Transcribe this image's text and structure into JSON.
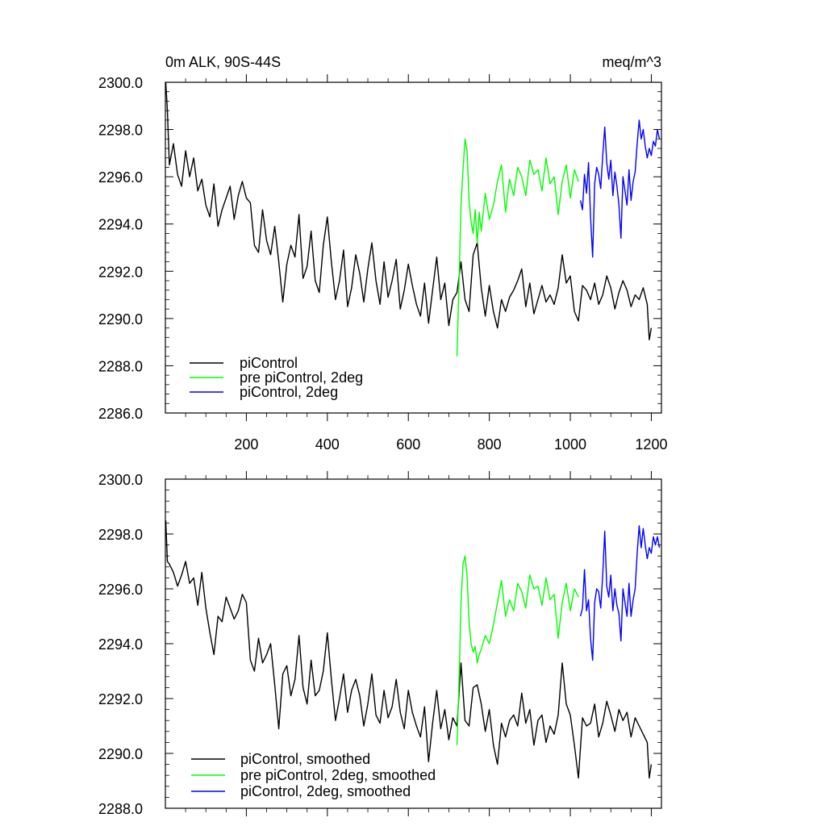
{
  "title_left": "0m ALK, 90S-44S",
  "title_right": "meq/m^3",
  "chart_data": [
    {
      "type": "line",
      "xlim": [
        0,
        1225
      ],
      "ylim": [
        2286,
        2300
      ],
      "xticks": [
        200,
        400,
        600,
        800,
        1000,
        1200
      ],
      "xtick_labels": [
        "200",
        "400",
        "600",
        "800",
        "1000",
        "1200"
      ],
      "yticks": [
        2286,
        2288,
        2290,
        2292,
        2294,
        2296,
        2298,
        2300
      ],
      "ytick_labels": [
        "2286.0",
        "2288.0",
        "2290.0",
        "2292.0",
        "2294.0",
        "2296.0",
        "2298.0",
        "2300.0"
      ],
      "legend_position": "bottom-left",
      "series": [
        {
          "name": "piControl",
          "color": "#000000",
          "x": [
            1,
            5,
            10,
            20,
            30,
            40,
            50,
            60,
            70,
            80,
            90,
            100,
            110,
            120,
            130,
            140,
            150,
            160,
            170,
            180,
            190,
            200,
            210,
            220,
            230,
            240,
            250,
            260,
            270,
            280,
            290,
            300,
            310,
            320,
            330,
            340,
            350,
            360,
            370,
            380,
            390,
            400,
            410,
            420,
            430,
            440,
            450,
            460,
            470,
            480,
            490,
            500,
            510,
            520,
            530,
            540,
            550,
            560,
            570,
            580,
            590,
            600,
            610,
            620,
            630,
            640,
            650,
            660,
            670,
            680,
            690,
            700,
            710,
            720,
            730,
            740,
            750,
            760,
            770,
            780,
            790,
            800,
            810,
            820,
            830,
            840,
            850,
            860,
            870,
            880,
            890,
            900,
            910,
            920,
            930,
            940,
            950,
            960,
            970,
            980,
            990,
            1000,
            1010,
            1020,
            1030,
            1040,
            1050,
            1060,
            1070,
            1080,
            1090,
            1100,
            1110,
            1120,
            1130,
            1140,
            1150,
            1160,
            1170,
            1180,
            1190,
            1195,
            1200
          ],
          "values": [
            2300.0,
            2298.8,
            2296.5,
            2297.4,
            2296.1,
            2295.6,
            2297.1,
            2296.0,
            2296.8,
            2295.4,
            2295.9,
            2294.8,
            2294.3,
            2295.7,
            2293.9,
            2294.6,
            2295.1,
            2295.6,
            2294.2,
            2295.2,
            2295.8,
            2295.1,
            2294.9,
            2293.1,
            2292.8,
            2294.6,
            2293.3,
            2292.7,
            2293.9,
            2292.4,
            2290.7,
            2292.3,
            2293.1,
            2292.6,
            2294.4,
            2291.7,
            2292.2,
            2293.7,
            2291.6,
            2291.1,
            2293.1,
            2294.3,
            2292.4,
            2290.8,
            2291.6,
            2292.9,
            2290.5,
            2291.3,
            2292.7,
            2291.9,
            2290.7,
            2292.1,
            2293.2,
            2291.6,
            2290.6,
            2292.4,
            2290.9,
            2291.6,
            2292.5,
            2290.4,
            2291.2,
            2292.3,
            2291.4,
            2290.6,
            2290.1,
            2291.5,
            2289.8,
            2291.2,
            2292.6,
            2290.8,
            2291.5,
            2289.7,
            2290.8,
            2291.1,
            2292.4,
            2290.8,
            2290.3,
            2292.7,
            2293.2,
            2291.3,
            2290.1,
            2291.4,
            2290.3,
            2289.6,
            2290.8,
            2290.3,
            2290.9,
            2291.2,
            2291.6,
            2292.1,
            2290.5,
            2291.5,
            2290.2,
            2290.8,
            2291.4,
            2290.7,
            2291.0,
            2290.6,
            2291.3,
            2292.7,
            2291.5,
            2291.8,
            2290.3,
            2289.9,
            2291.4,
            2291.2,
            2290.8,
            2291.5,
            2290.6,
            2291.0,
            2291.8,
            2291.3,
            2290.4,
            2291.1,
            2291.6,
            2291.2,
            2290.5,
            2291.0,
            2290.8,
            2291.3,
            2290.6,
            2289.1,
            2289.6
          ]
        },
        {
          "name": "pre piControl, 2deg",
          "color": "#00ff00",
          "x": [
            720,
            725,
            730,
            735,
            740,
            745,
            750,
            755,
            760,
            765,
            770,
            775,
            780,
            790,
            800,
            810,
            820,
            830,
            840,
            850,
            860,
            870,
            880,
            890,
            900,
            910,
            920,
            930,
            940,
            950,
            960,
            970,
            980,
            990,
            1000,
            1010,
            1020
          ],
          "values": [
            2288.4,
            2291.5,
            2294.8,
            2296.3,
            2297.6,
            2297.1,
            2295.0,
            2294.1,
            2293.6,
            2294.6,
            2293.2,
            2294.5,
            2293.7,
            2295.3,
            2294.2,
            2294.8,
            2295.8,
            2296.5,
            2294.5,
            2295.9,
            2295.2,
            2296.4,
            2296.0,
            2295.2,
            2296.7,
            2296.1,
            2296.3,
            2295.4,
            2296.8,
            2295.7,
            2296.0,
            2294.4,
            2295.8,
            2296.5,
            2295.1,
            2296.3,
            2295.8
          ]
        },
        {
          "name": "piControl, 2deg",
          "color": "#0000ff",
          "x": [
            1025,
            1030,
            1035,
            1040,
            1045,
            1050,
            1055,
            1060,
            1065,
            1070,
            1075,
            1080,
            1085,
            1090,
            1095,
            1100,
            1105,
            1110,
            1115,
            1120,
            1125,
            1130,
            1135,
            1140,
            1145,
            1150,
            1155,
            1160,
            1165,
            1170,
            1175,
            1180,
            1185,
            1190,
            1195,
            1200,
            1205,
            1210,
            1215,
            1220
          ],
          "values": [
            2295.0,
            2294.6,
            2296.1,
            2295.3,
            2296.6,
            2294.3,
            2292.6,
            2295.7,
            2296.4,
            2296.1,
            2295.5,
            2296.9,
            2298.1,
            2296.6,
            2295.9,
            2296.7,
            2295.2,
            2296.2,
            2295.6,
            2294.8,
            2293.4,
            2296.0,
            2295.4,
            2294.8,
            2296.3,
            2295.0,
            2295.8,
            2296.2,
            2297.4,
            2298.4,
            2297.6,
            2298.0,
            2297.3,
            2296.8,
            2297.2,
            2296.9,
            2297.5,
            2297.3,
            2298.0,
            2297.6
          ]
        }
      ]
    },
    {
      "type": "line",
      "xlim": [
        0,
        1225
      ],
      "ylim": [
        2288,
        2300
      ],
      "xticks": [
        200,
        400,
        600,
        800,
        1000,
        1200
      ],
      "xtick_labels": [],
      "yticks": [
        2288,
        2290,
        2292,
        2294,
        2296,
        2298,
        2300
      ],
      "ytick_labels": [
        "2288.0",
        "2290.0",
        "2292.0",
        "2294.0",
        "2296.0",
        "2298.0",
        "2300.0"
      ],
      "legend_position": "bottom-left",
      "series": [
        {
          "name": "piControl, smoothed",
          "color": "#000000",
          "x": [
            1,
            5,
            10,
            20,
            30,
            40,
            50,
            60,
            70,
            80,
            90,
            100,
            110,
            120,
            130,
            140,
            150,
            160,
            170,
            180,
            190,
            200,
            210,
            220,
            230,
            240,
            250,
            260,
            270,
            280,
            290,
            300,
            310,
            320,
            330,
            340,
            350,
            360,
            370,
            380,
            390,
            400,
            410,
            420,
            430,
            440,
            450,
            460,
            470,
            480,
            490,
            500,
            510,
            520,
            530,
            540,
            550,
            560,
            570,
            580,
            590,
            600,
            610,
            620,
            630,
            640,
            650,
            660,
            670,
            680,
            690,
            700,
            710,
            720,
            730,
            740,
            750,
            760,
            770,
            780,
            790,
            800,
            810,
            820,
            830,
            840,
            850,
            860,
            870,
            880,
            890,
            900,
            910,
            920,
            930,
            940,
            950,
            960,
            970,
            980,
            990,
            1000,
            1010,
            1020,
            1030,
            1040,
            1050,
            1060,
            1070,
            1080,
            1090,
            1100,
            1110,
            1120,
            1130,
            1140,
            1150,
            1160,
            1170,
            1180,
            1190,
            1195,
            1200
          ],
          "values": [
            2298.5,
            2297.0,
            2296.9,
            2296.6,
            2296.1,
            2296.5,
            2297.0,
            2296.2,
            2296.4,
            2295.4,
            2296.6,
            2295.3,
            2294.4,
            2293.6,
            2295.0,
            2294.8,
            2295.7,
            2295.3,
            2294.9,
            2295.2,
            2295.8,
            2295.5,
            2293.4,
            2293.0,
            2294.2,
            2293.3,
            2293.6,
            2294.0,
            2292.5,
            2290.9,
            2292.9,
            2293.2,
            2292.1,
            2292.7,
            2294.3,
            2292.4,
            2291.8,
            2293.4,
            2292.1,
            2292.3,
            2293.0,
            2294.4,
            2292.7,
            2291.2,
            2292.0,
            2292.9,
            2291.5,
            2292.3,
            2292.7,
            2292.1,
            2291.0,
            2291.8,
            2292.9,
            2291.4,
            2291.1,
            2292.3,
            2291.3,
            2291.7,
            2292.7,
            2291.5,
            2290.9,
            2292.3,
            2291.5,
            2291.0,
            2290.6,
            2291.7,
            2289.7,
            2291.1,
            2292.3,
            2290.9,
            2291.6,
            2290.5,
            2291.3,
            2291.0,
            2293.3,
            2291.2,
            2291.0,
            2292.4,
            2292.5,
            2291.8,
            2290.8,
            2291.6,
            2290.3,
            2289.6,
            2291.1,
            2290.6,
            2291.2,
            2291.4,
            2291.0,
            2292.2,
            2291.1,
            2291.6,
            2290.3,
            2291.2,
            2291.4,
            2290.4,
            2291.0,
            2290.7,
            2291.4,
            2293.3,
            2291.8,
            2291.4,
            2290.3,
            2289.1,
            2291.3,
            2291.0,
            2291.1,
            2291.8,
            2290.6,
            2291.1,
            2291.9,
            2291.4,
            2290.8,
            2291.6,
            2291.2,
            2291.5,
            2290.6,
            2291.3,
            2291.0,
            2290.7,
            2290.4,
            2289.1,
            2289.6
          ]
        },
        {
          "name": "pre piControl, 2deg, smoothed",
          "color": "#00ff00",
          "x": [
            720,
            725,
            730,
            735,
            740,
            745,
            750,
            755,
            760,
            765,
            770,
            775,
            780,
            790,
            800,
            810,
            820,
            830,
            840,
            850,
            860,
            870,
            880,
            890,
            900,
            910,
            920,
            930,
            940,
            950,
            960,
            970,
            980,
            990,
            1000,
            1010,
            1020
          ],
          "values": [
            2290.3,
            2292.6,
            2295.5,
            2296.9,
            2297.2,
            2296.5,
            2294.8,
            2294.0,
            2293.7,
            2293.9,
            2293.3,
            2293.6,
            2293.8,
            2294.3,
            2294.0,
            2294.7,
            2295.5,
            2296.3,
            2295.0,
            2295.6,
            2295.2,
            2296.2,
            2295.9,
            2295.3,
            2296.5,
            2296.0,
            2296.1,
            2295.4,
            2296.4,
            2295.6,
            2295.8,
            2294.2,
            2295.5,
            2296.2,
            2295.2,
            2296.0,
            2295.7
          ]
        },
        {
          "name": "piControl, 2deg, smoothed",
          "color": "#0000ff",
          "x": [
            1025,
            1030,
            1035,
            1040,
            1045,
            1050,
            1055,
            1060,
            1065,
            1070,
            1075,
            1080,
            1085,
            1090,
            1095,
            1100,
            1105,
            1110,
            1115,
            1120,
            1125,
            1130,
            1135,
            1140,
            1145,
            1150,
            1155,
            1160,
            1165,
            1170,
            1175,
            1180,
            1185,
            1190,
            1195,
            1200,
            1205,
            1210,
            1215,
            1220
          ],
          "values": [
            2295.0,
            2295.3,
            2296.7,
            2295.2,
            2295.6,
            2294.2,
            2293.4,
            2295.5,
            2296.0,
            2295.9,
            2295.3,
            2296.5,
            2298.1,
            2296.1,
            2295.7,
            2296.5,
            2295.2,
            2296.0,
            2295.4,
            2295.1,
            2294.1,
            2296.0,
            2295.5,
            2295.0,
            2296.2,
            2295.0,
            2295.6,
            2296.0,
            2297.3,
            2298.3,
            2297.5,
            2298.2,
            2297.6,
            2297.1,
            2297.5,
            2297.3,
            2297.9,
            2297.6,
            2297.9,
            2297.5
          ]
        }
      ]
    }
  ]
}
